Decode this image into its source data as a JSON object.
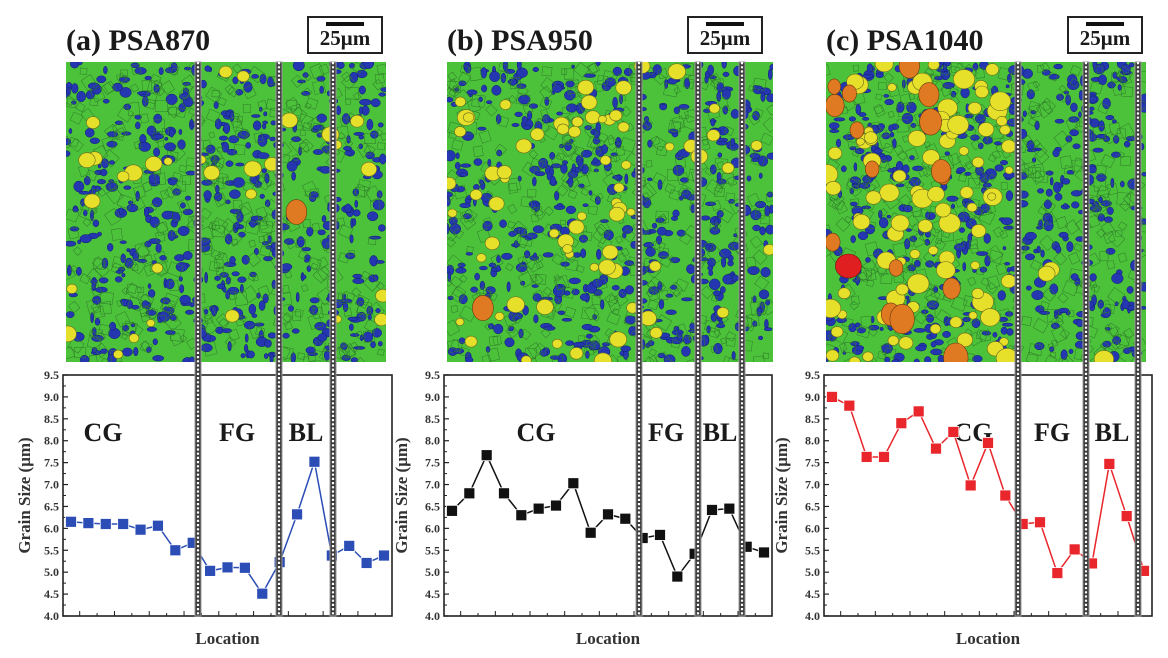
{
  "figure": {
    "panels": [
      {
        "id": "a",
        "title": "(a) PSA870",
        "scale_label": "25μm",
        "micrograph": "EBSD grain map, predominantly green/blue fine grains with scattered yellow and one orange grain",
        "grain_colors": {
          "fine_small": "#2437b0",
          "medium": "#4cc23a",
          "large": "#e6e02a",
          "larger": "#e07a22",
          "largest": "#e02020"
        }
      },
      {
        "id": "b",
        "title": "(b) PSA950",
        "scale_label": "25μm",
        "micrograph": "EBSD grain map, more yellow grains in CG region, one orange grain",
        "grain_colors": {
          "fine_small": "#2437b0",
          "medium": "#4cc23a",
          "large": "#e6e02a",
          "larger": "#e07a22",
          "largest": "#e02020"
        }
      },
      {
        "id": "c",
        "title": "(c) PSA1040",
        "scale_label": "25μm",
        "micrograph": "EBSD grain map, many yellow and orange grains and a red grain in CG region",
        "grain_colors": {
          "fine_small": "#2437b0",
          "medium": "#4cc23a",
          "large": "#e6e02a",
          "larger": "#e07a22",
          "largest": "#e02020"
        }
      }
    ]
  },
  "chart_data": [
    {
      "type": "line",
      "title": "(a) PSA870",
      "xlabel": "Location",
      "ylabel": "Grain Size (μm)",
      "ylim": [
        4.0,
        9.5
      ],
      "yticks": [
        "4.0",
        "4.5",
        "5.0",
        "5.5",
        "6.0",
        "6.5",
        "7.0",
        "7.5",
        "8.0",
        "8.5",
        "9.0",
        "9.5"
      ],
      "grid": false,
      "series": [
        {
          "name": "PSA870",
          "color": "#2b4db5",
          "marker": "square",
          "x": [
            1,
            2,
            3,
            4,
            5,
            6,
            7,
            8,
            9,
            10,
            11,
            12,
            13,
            14,
            15,
            16,
            17,
            18,
            19
          ],
          "values": [
            6.15,
            6.12,
            6.1,
            6.1,
            5.97,
            6.06,
            5.5,
            5.67,
            5.03,
            5.11,
            5.1,
            4.51,
            5.23,
            6.32,
            7.52,
            5.38,
            5.6,
            5.21,
            5.38
          ]
        }
      ],
      "regions": [
        {
          "label": "CG"
        },
        {
          "label": "FG"
        },
        {
          "label": "BL"
        }
      ]
    },
    {
      "type": "line",
      "title": "(b) PSA950",
      "xlabel": "Location",
      "ylabel": "Grain Size (μm)",
      "ylim": [
        4.0,
        9.5
      ],
      "yticks": [
        "4.0",
        "4.5",
        "5.0",
        "5.5",
        "6.0",
        "6.5",
        "7.0",
        "7.5",
        "8.0",
        "8.5",
        "9.0",
        "9.5"
      ],
      "grid": false,
      "series": [
        {
          "name": "PSA950",
          "color": "#111111",
          "marker": "square",
          "x": [
            1,
            2,
            3,
            4,
            5,
            6,
            7,
            8,
            9,
            10,
            11,
            12,
            13,
            14,
            15,
            16,
            17,
            18,
            19
          ],
          "values": [
            6.4,
            6.8,
            7.67,
            6.8,
            6.3,
            6.45,
            6.52,
            7.03,
            5.9,
            6.32,
            6.22,
            5.78,
            5.85,
            4.9,
            5.42,
            6.42,
            6.45,
            5.58,
            5.45
          ]
        }
      ],
      "regions": [
        {
          "label": "CG"
        },
        {
          "label": "FG"
        },
        {
          "label": "BL"
        }
      ]
    },
    {
      "type": "line",
      "title": "(c) PSA1040",
      "xlabel": "Location",
      "ylabel": "Grain Size (μm)",
      "ylim": [
        4.0,
        9.5
      ],
      "yticks": [
        "4.0",
        "4.5",
        "5.0",
        "5.5",
        "6.0",
        "6.5",
        "7.0",
        "7.5",
        "8.0",
        "8.5",
        "9.0",
        "9.5"
      ],
      "grid": false,
      "series": [
        {
          "name": "PSA1040",
          "color": "#e8262b",
          "marker": "square",
          "x": [
            1,
            2,
            3,
            4,
            5,
            6,
            7,
            8,
            9,
            10,
            11,
            12,
            13,
            14,
            15,
            16,
            17,
            18,
            19
          ],
          "values": [
            9.0,
            8.8,
            7.63,
            7.63,
            8.4,
            8.67,
            7.82,
            8.2,
            6.98,
            7.95,
            6.75,
            6.1,
            6.14,
            4.98,
            5.52,
            5.2,
            7.47,
            6.28,
            5.03
          ]
        }
      ],
      "regions": [
        {
          "label": "CG"
        },
        {
          "label": "FG"
        },
        {
          "label": "BL"
        }
      ]
    }
  ]
}
